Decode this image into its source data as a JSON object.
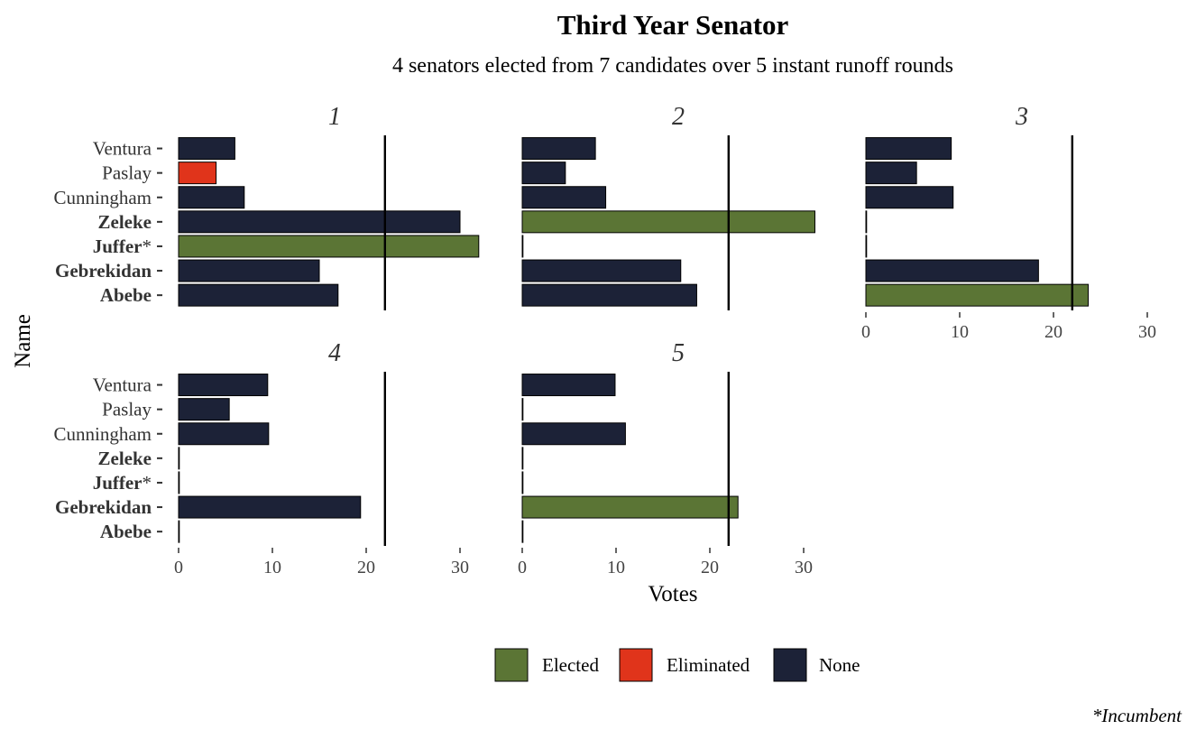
{
  "chart_data": {
    "type": "bar",
    "orientation": "horizontal",
    "facets": "round",
    "title": "Third Year Senator",
    "subtitle": "4 senators elected from 7 candidates over 5 instant runoff rounds",
    "xlabel": "Votes",
    "ylabel": "Name",
    "xlim": [
      0,
      30
    ],
    "xticks": [
      0,
      10,
      20,
      30
    ],
    "threshold": 22,
    "caption": "*Incumbent",
    "candidates": [
      {
        "name": "Ventura",
        "incumbent": false,
        "elected": false
      },
      {
        "name": "Paslay",
        "incumbent": false,
        "elected": false
      },
      {
        "name": "Cunningham",
        "incumbent": false,
        "elected": false
      },
      {
        "name": "Zeleke",
        "incumbent": false,
        "elected": true
      },
      {
        "name": "Juffer",
        "incumbent": true,
        "elected": true
      },
      {
        "name": "Gebrekidan",
        "incumbent": false,
        "elected": true
      },
      {
        "name": "Abebe",
        "incumbent": false,
        "elected": true
      }
    ],
    "rounds": [
      {
        "label": "1",
        "values": [
          6.0,
          4.0,
          7.0,
          30.0,
          32.0,
          15.0,
          17.0
        ],
        "status": [
          "None",
          "Eliminated",
          "None",
          "None",
          "Elected",
          "None",
          "None"
        ]
      },
      {
        "label": "2",
        "values": [
          7.8,
          4.6,
          8.9,
          31.2,
          0,
          16.9,
          18.6
        ],
        "status": [
          "None",
          "None",
          "None",
          "Elected",
          "None",
          "None",
          "None"
        ]
      },
      {
        "label": "3",
        "values": [
          9.1,
          5.4,
          9.3,
          0,
          0,
          18.4,
          23.7
        ],
        "status": [
          "None",
          "None",
          "None",
          "None",
          "None",
          "None",
          "Elected"
        ]
      },
      {
        "label": "4",
        "values": [
          9.5,
          5.4,
          9.6,
          0,
          0,
          19.4,
          0
        ],
        "status": [
          "None",
          "None",
          "None",
          "None",
          "None",
          "None",
          "None"
        ]
      },
      {
        "label": "5",
        "values": [
          9.9,
          0,
          11.0,
          0,
          0,
          23.0,
          0
        ],
        "status": [
          "None",
          "None",
          "None",
          "None",
          "None",
          "Elected",
          "None"
        ]
      }
    ],
    "legend": {
      "placement": "bottom",
      "items": [
        {
          "label": "Elected",
          "color": "#5b7535"
        },
        {
          "label": "Eliminated",
          "color": "#e0341b"
        },
        {
          "label": "None",
          "color": "#1c2237"
        }
      ]
    }
  }
}
